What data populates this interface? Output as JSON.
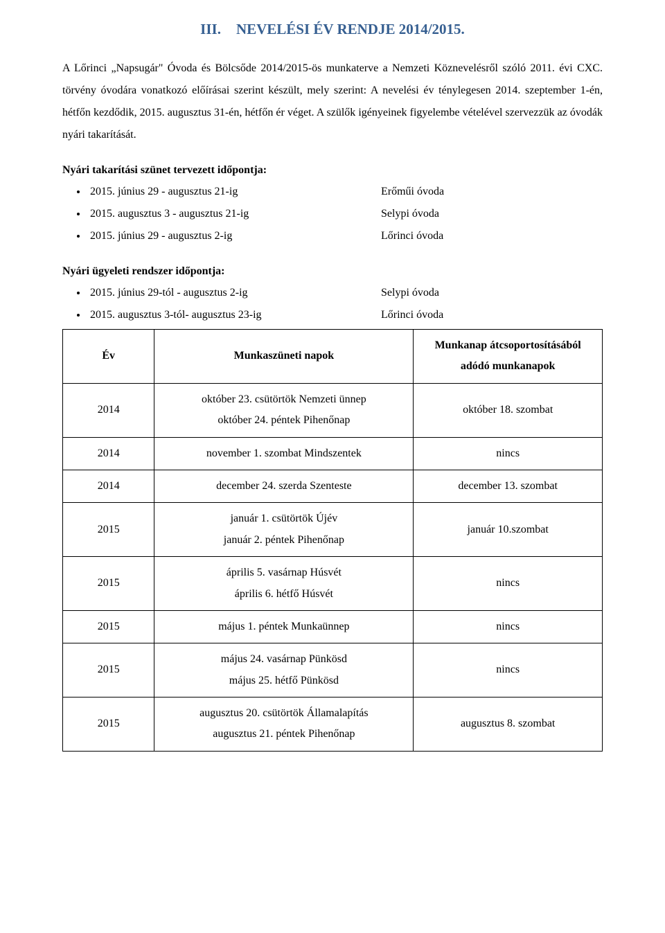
{
  "heading": {
    "prefix": "III.",
    "title": "NEVELÉSI ÉV RENDJE 2014/2015.",
    "color": "#365f91"
  },
  "intro": "A Lőrinci „Napsugár\" Óvoda és Bölcsőde 2014/2015-ös munkaterve a Nemzeti Köznevelésről szóló 2011. évi CXC. törvény óvodára vonatkozó előírásai szerint készült, mely szerint: A nevelési év ténylegesen 2014. szeptember 1-én, hétfőn kezdődik, 2015. augusztus 31-én, hétfőn ér véget. A szülők igényeinek figyelembe vételével szervezzük az óvodák nyári takarítását.",
  "cleaning": {
    "label": "Nyári takarítási szünet tervezett időpontja:",
    "items": [
      {
        "range": "2015. június 29 - augusztus 21-ig",
        "place": "Erőműi óvoda"
      },
      {
        "range": "2015. augusztus 3 - augusztus 21-ig",
        "place": "Selypi óvoda"
      },
      {
        "range": "2015. június 29 - augusztus 2-ig",
        "place": "Lőrinci óvoda"
      }
    ]
  },
  "duty": {
    "label": "Nyári ügyeleti rendszer időpontja:",
    "items": [
      {
        "range": "2015. június 29-tól  - augusztus 2-ig",
        "place": "Selypi óvoda"
      },
      {
        "range": "2015. augusztus 3-tól- augusztus 23-ig",
        "place": "Lőrinci óvoda"
      }
    ]
  },
  "table": {
    "headers": {
      "year": "Év",
      "holidays": "Munkaszüneti napok",
      "workdays": "Munkanap átcsoportosításából adódó munkanapok"
    },
    "rows": [
      {
        "year": "2014",
        "holidays": "október 23. csütörtök Nemzeti ünnep\noktóber 24. péntek Pihenőnap",
        "workdays": "október 18. szombat"
      },
      {
        "year": "2014",
        "holidays": "november 1. szombat Mindszentek",
        "workdays": "nincs"
      },
      {
        "year": "2014",
        "holidays": "december 24. szerda Szenteste",
        "workdays": "december 13. szombat"
      },
      {
        "year": "2015",
        "holidays": "január 1. csütörtök Újév\njanuár 2. péntek Pihenőnap",
        "workdays": "január 10.szombat"
      },
      {
        "year": "2015",
        "holidays": "április 5. vasárnap Húsvét\náprilis 6. hétfő Húsvét",
        "workdays": "nincs"
      },
      {
        "year": "2015",
        "holidays": "május 1. péntek Munkaünnep",
        "workdays": "nincs"
      },
      {
        "year": "2015",
        "holidays": "május 24. vasárnap Pünkösd\nmájus 25. hétfő Pünkösd",
        "workdays": "nincs"
      },
      {
        "year": "2015",
        "holidays": "augusztus 20. csütörtök Államalapítás\naugusztus 21. péntek Pihenőnap",
        "workdays": "augusztus 8. szombat"
      }
    ]
  }
}
